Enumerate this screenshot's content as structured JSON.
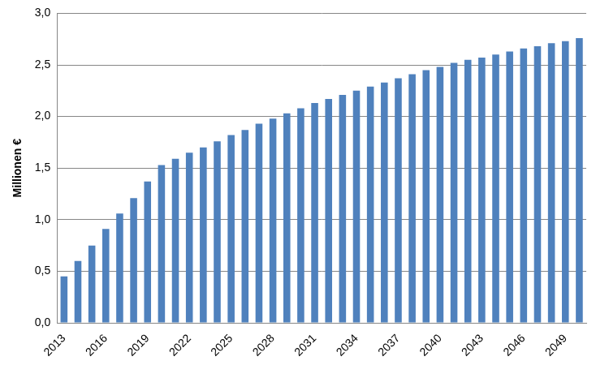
{
  "chart_data": {
    "type": "bar",
    "y_label": "Millionen €",
    "categories": [
      "2013",
      null,
      null,
      "2016",
      null,
      null,
      "2019",
      null,
      null,
      "2022",
      null,
      null,
      "2025",
      null,
      null,
      "2028",
      null,
      null,
      "2031",
      null,
      null,
      "2034",
      null,
      null,
      "2037",
      null,
      null,
      "2040",
      null,
      null,
      "2043",
      null,
      null,
      "2046",
      null,
      null,
      "2049",
      null
    ],
    "values": [
      0.45,
      0.6,
      0.75,
      0.91,
      1.06,
      1.21,
      1.37,
      1.53,
      1.59,
      1.65,
      1.7,
      1.76,
      1.82,
      1.87,
      1.93,
      1.98,
      2.03,
      2.08,
      2.13,
      2.17,
      2.21,
      2.25,
      2.29,
      2.33,
      2.37,
      2.41,
      2.45,
      2.48,
      2.52,
      2.55,
      2.57,
      2.6,
      2.63,
      2.66,
      2.68,
      2.71,
      2.73,
      2.76
    ],
    "color": "#4f81bd",
    "ylim": [
      0,
      3
    ],
    "yticks": [
      {
        "value": 0,
        "label": "0,0"
      },
      {
        "value": 0.5,
        "label": "0,5"
      },
      {
        "value": 1,
        "label": "1,0"
      },
      {
        "value": 1.5,
        "label": "1,5"
      },
      {
        "value": 2,
        "label": "2,0"
      },
      {
        "value": 2.5,
        "label": "2,5"
      },
      {
        "value": 3,
        "label": "3,0"
      }
    ],
    "grid": true
  }
}
